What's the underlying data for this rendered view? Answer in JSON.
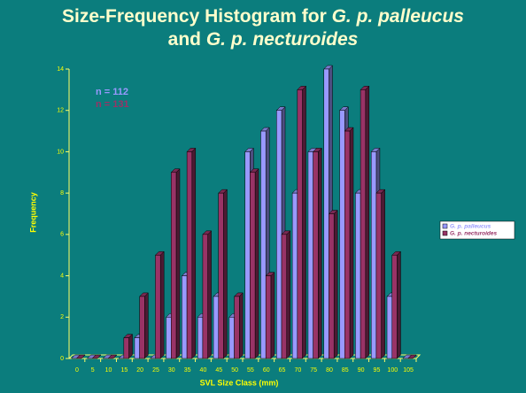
{
  "chart_data": {
    "type": "bar",
    "title": [
      "Size-Frequency Histogram for ",
      "G. p. palleucus",
      " and ",
      "G. p. necturoides"
    ],
    "x_label": "SVL Size Class (mm)",
    "y_label": "Frequency",
    "annotations": [
      {
        "text": "n = 112",
        "color": "#9999ff"
      },
      {
        "text": "n = 131",
        "color": "#993366"
      }
    ],
    "categories": [
      "0",
      "5",
      "10",
      "15",
      "20",
      "25",
      "30",
      "35",
      "40",
      "45",
      "50",
      "55",
      "60",
      "65",
      "70",
      "75",
      "80",
      "85",
      "90",
      "95",
      "100",
      "105"
    ],
    "series": [
      {
        "name": "G. p. palleucus",
        "color": "#9999ff",
        "values": [
          0,
          0,
          0,
          0,
          1,
          0,
          2,
          4,
          2,
          3,
          2,
          10,
          11,
          12,
          8,
          10,
          14,
          12,
          8,
          10,
          3,
          0
        ]
      },
      {
        "name": "G. p. necturoides",
        "color": "#993366",
        "values": [
          0,
          0,
          0,
          1,
          3,
          5,
          9,
          10,
          6,
          8,
          3,
          9,
          4,
          6,
          13,
          10,
          7,
          11,
          13,
          8,
          5,
          0
        ]
      }
    ],
    "ylim": [
      0,
      14
    ],
    "yticks": [
      0,
      2,
      4,
      6,
      8,
      10,
      12,
      14
    ],
    "legend": "right"
  }
}
